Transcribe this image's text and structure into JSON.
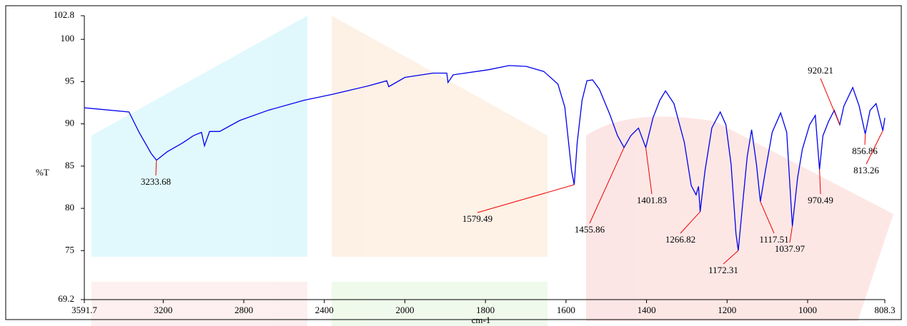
{
  "chart_data": {
    "type": "line",
    "xlabel": "cm-1",
    "ylabel": "%T",
    "color": "#0000ee",
    "annotation_color": "#ee0000",
    "grid": false,
    "x_scale_break": 2000,
    "xlim": [
      3591.7,
      808.3
    ],
    "ylim": [
      69.2,
      102.8
    ],
    "xticks": [
      3591.7,
      3200,
      2800,
      2400,
      2000,
      1800,
      1600,
      1400,
      1200,
      1000,
      808.3
    ],
    "yticks": [
      69.2,
      75,
      80,
      85,
      90,
      95,
      100,
      102.8
    ],
    "x": [
      3591.7,
      3370,
      3320,
      3260,
      3233.68,
      3180,
      3100,
      3050,
      3010,
      2995,
      2970,
      2920,
      2820,
      2680,
      2500,
      2360,
      2180,
      2090,
      2080,
      2000,
      1930,
      1896,
      1893,
      1880,
      1793,
      1741,
      1698,
      1655,
      1620,
      1603,
      1586,
      1579.49,
      1572,
      1560,
      1548,
      1534,
      1517,
      1491,
      1472,
      1455.86,
      1439,
      1420,
      1401.83,
      1384,
      1367,
      1353,
      1332,
      1306,
      1289,
      1277,
      1271,
      1266.82,
      1255,
      1238,
      1217,
      1203,
      1190,
      1178,
      1172.31,
      1162,
      1150,
      1139,
      1127,
      1117.51,
      1105,
      1088,
      1067,
      1052,
      1037.97,
      1025,
      1013,
      995,
      981,
      970.49,
      962,
      948,
      934,
      920.21,
      910,
      888,
      872,
      856.86,
      845,
      830,
      813.26,
      808.3
    ],
    "values": [
      91.9,
      91.4,
      89.0,
      86.5,
      85.7,
      86.7,
      87.8,
      88.6,
      89.0,
      87.4,
      89.1,
      89.1,
      90.4,
      91.6,
      92.8,
      93.5,
      94.5,
      95.1,
      94.4,
      95.5,
      96.0,
      96.0,
      94.9,
      95.8,
      96.4,
      96.9,
      96.8,
      96.2,
      94.7,
      92.0,
      84.4,
      82.8,
      87.8,
      92.8,
      95.1,
      95.2,
      94.1,
      91.1,
      88.6,
      87.2,
      88.6,
      89.5,
      87.2,
      90.7,
      92.8,
      93.9,
      92.4,
      87.8,
      82.7,
      81.6,
      82.6,
      79.6,
      84.4,
      89.5,
      91.4,
      89.9,
      85.2,
      77.0,
      75.0,
      80.2,
      86.1,
      89.3,
      85.2,
      80.8,
      84.4,
      89.0,
      91.3,
      89.0,
      77.9,
      83.6,
      87.0,
      89.9,
      91.0,
      84.6,
      88.6,
      90.3,
      91.6,
      89.9,
      92.1,
      94.3,
      92.1,
      88.8,
      91.6,
      92.4,
      89.2,
      90.7
    ],
    "annotations": [
      {
        "x": 3233.68,
        "y": 85.7
      },
      {
        "x": 1579.49,
        "y": 82.8
      },
      {
        "x": 1455.86,
        "y": 87.2
      },
      {
        "x": 1401.83,
        "y": 87.2
      },
      {
        "x": 1266.82,
        "y": 79.6
      },
      {
        "x": 1172.31,
        "y": 75.0
      },
      {
        "x": 1117.51,
        "y": 80.8
      },
      {
        "x": 1037.97,
        "y": 77.9
      },
      {
        "x": 970.49,
        "y": 84.6
      },
      {
        "x": 920.21,
        "y": 89.9
      },
      {
        "x": 856.86,
        "y": 88.8
      },
      {
        "x": 813.26,
        "y": 89.2
      }
    ]
  }
}
